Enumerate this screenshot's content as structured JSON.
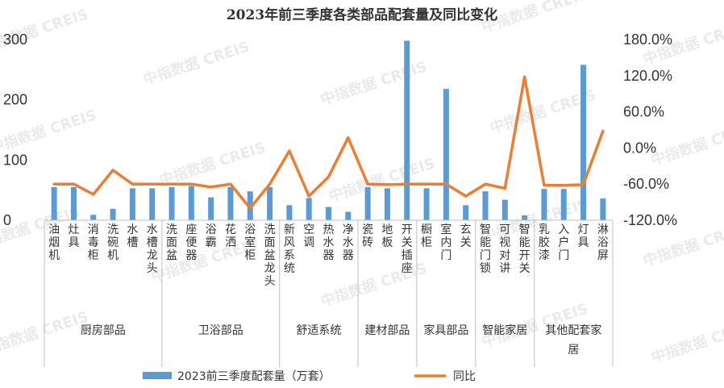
{
  "chart_data": {
    "type": "bar",
    "title": "2023年前三季度各类部品配套量及同比变化",
    "categories": [
      "油烟机",
      "灶具",
      "消毒柜",
      "洗碗机",
      "水槽",
      "水槽龙头",
      "洗面盆",
      "座便器",
      "浴霸",
      "花洒",
      "浴室柜",
      "洗面盆龙头",
      "新风系统",
      "空调",
      "热水器",
      "净水器",
      "瓷砖",
      "地板",
      "开关插座",
      "橱柜",
      "室内门",
      "玄关",
      "智能门锁",
      "可视对讲",
      "智能开关",
      "乳胶漆",
      "入户门",
      "灯具",
      "淋浴屏"
    ],
    "groups": [
      {
        "name": "厨房部品",
        "count": 6
      },
      {
        "name": "卫浴部品",
        "count": 6
      },
      {
        "name": "舒适系统",
        "count": 4
      },
      {
        "name": "建材部品",
        "count": 3
      },
      {
        "name": "家具部品",
        "count": 3
      },
      {
        "name": "智能家居",
        "count": 3
      },
      {
        "name": "其他配套家居",
        "count": 4
      }
    ],
    "series": [
      {
        "name": "2023前三季度配套量（万套）",
        "type": "bar",
        "axis": "left",
        "color": "#5b9bd5",
        "values": [
          55,
          55,
          9,
          19,
          53,
          53,
          55,
          57,
          38,
          55,
          48,
          55,
          25,
          37,
          22,
          14,
          55,
          53,
          298,
          53,
          218,
          25,
          48,
          34,
          8,
          52,
          52,
          258,
          36
        ]
      },
      {
        "name": "同比",
        "type": "line",
        "axis": "right",
        "color": "#ed7d31",
        "values": [
          -60,
          -60,
          -77,
          -37,
          -60,
          -60,
          -60,
          -60,
          -65,
          -60,
          -100,
          -60,
          -5,
          -80,
          -48,
          17,
          -60,
          -61,
          -60,
          -60,
          -60,
          -80,
          -60,
          -67,
          118,
          -62,
          -62,
          -61,
          28
        ]
      }
    ],
    "y_left": {
      "min": 0,
      "max": 300,
      "ticks": [
        "0",
        "100",
        "200",
        "300"
      ]
    },
    "y_right": {
      "min": -120,
      "max": 180,
      "ticks": [
        "-120.0%",
        "-60.0%",
        "0.0%",
        "60.0%",
        "120.0%",
        "180.0%"
      ]
    },
    "grid": false,
    "legend_position": "bottom",
    "watermark": "中指数据 CREIS"
  }
}
